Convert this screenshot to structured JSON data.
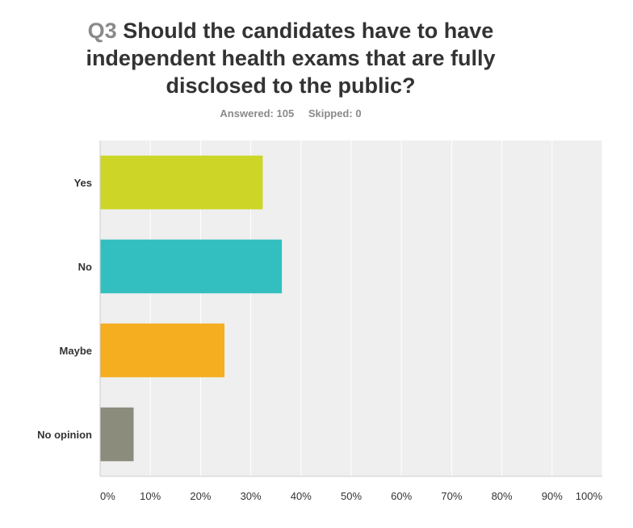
{
  "question": {
    "number": "Q3",
    "text": "Should the candidates have to have independent health exams that are fully disclosed to the public?"
  },
  "summary": {
    "answered": "Answered: 105",
    "skipped": "Skipped: 0"
  },
  "colors": {
    "plot_bg": "#efefef",
    "grid": "#ffffff",
    "axis": "#cccccc",
    "bars": [
      "#cdd626",
      "#33bfbf",
      "#f5ae1f",
      "#8c8c7c"
    ]
  },
  "chart_data": {
    "type": "bar",
    "orientation": "horizontal",
    "title": "Should the candidates have to have independent health exams that are fully disclosed to the public?",
    "categories": [
      "Yes",
      "No",
      "Maybe",
      "No opinion"
    ],
    "values": [
      32.38,
      36.19,
      24.76,
      6.67
    ],
    "unit": "%",
    "xlim": [
      0,
      100
    ],
    "xticks": [
      "0%",
      "10%",
      "20%",
      "30%",
      "40%",
      "50%",
      "60%",
      "70%",
      "80%",
      "90%",
      "100%"
    ],
    "grid": true,
    "legend": "none"
  }
}
